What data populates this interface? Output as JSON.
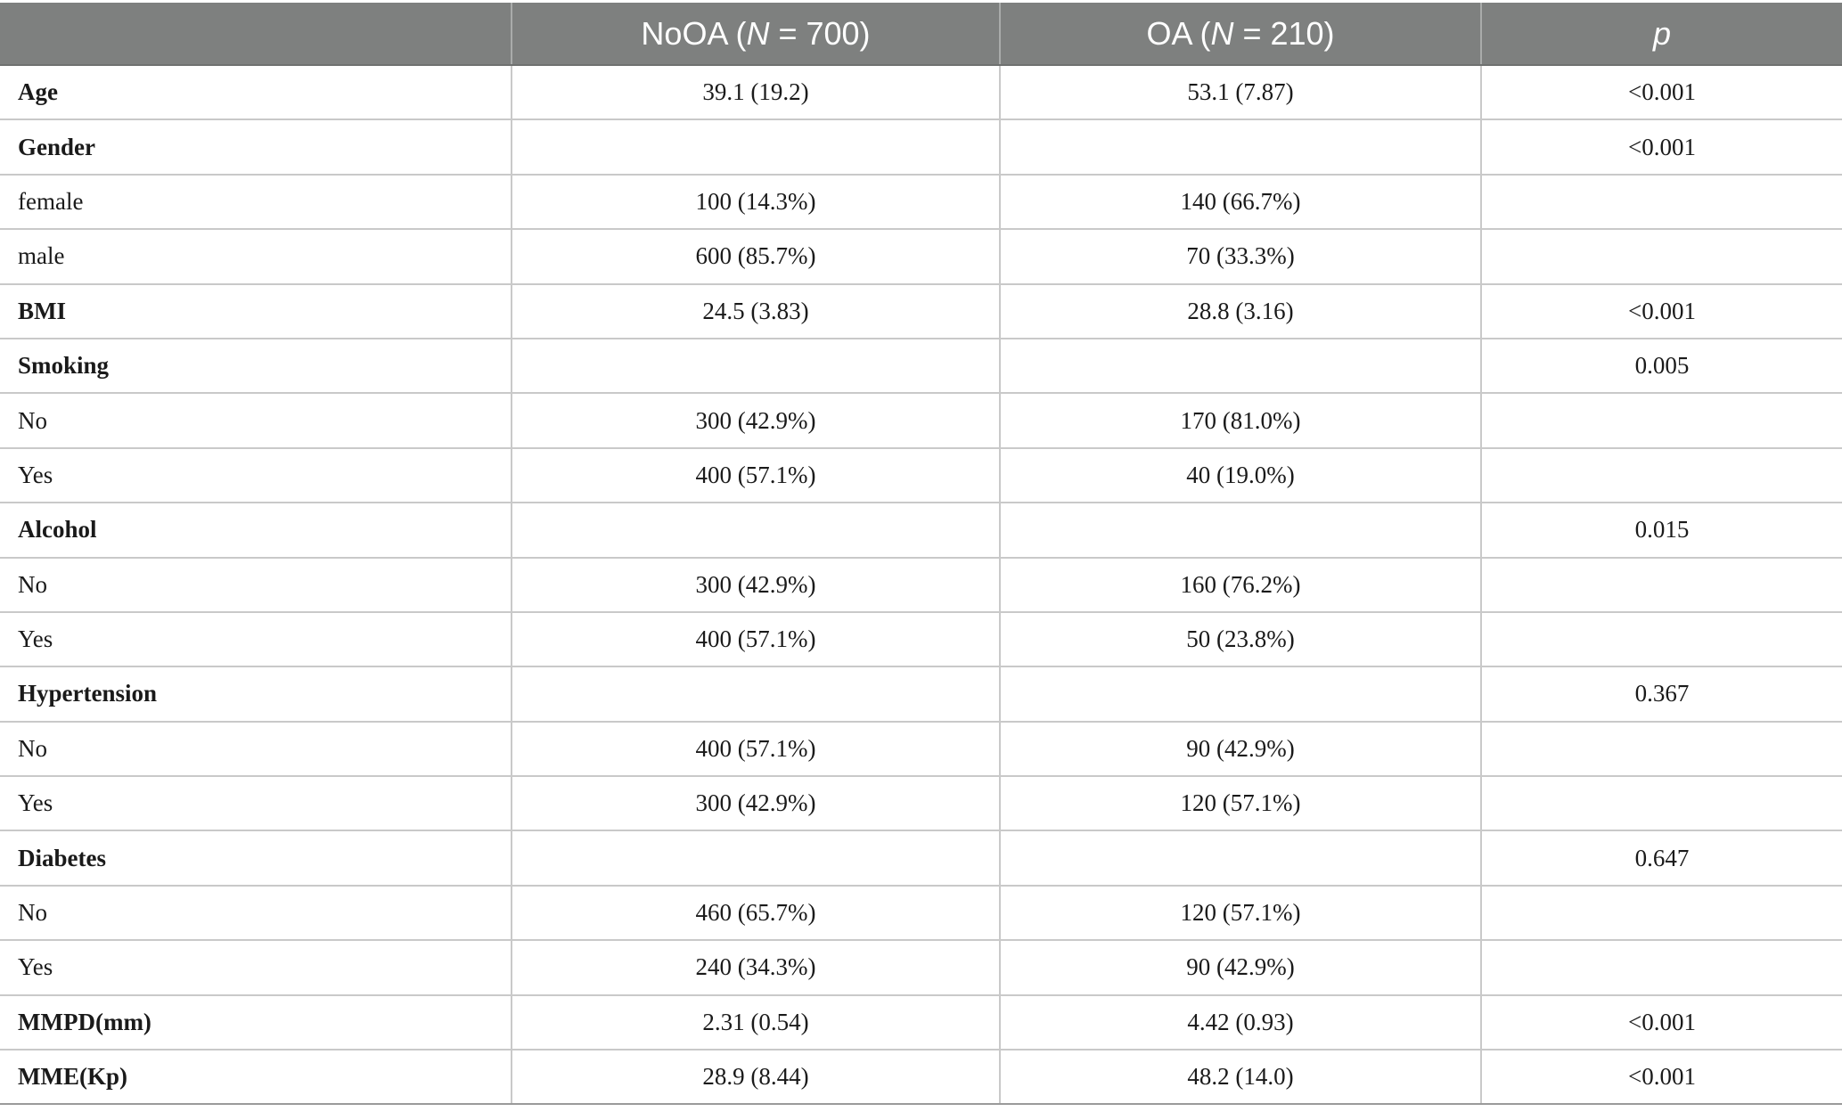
{
  "header": {
    "col1": {
      "prefix": "NoOA (",
      "italic": "N",
      "suffix": " = 700)"
    },
    "col2": {
      "prefix": "OA (",
      "italic": "N",
      "suffix": " = 210)"
    },
    "col3": {
      "italic": "p"
    }
  },
  "rows": [
    {
      "label": "Age",
      "bold": true,
      "noa": "39.1 (19.2)",
      "oa": "53.1 (7.87)",
      "p": "<0.001"
    },
    {
      "label": "Gender",
      "bold": true,
      "noa": "",
      "oa": "",
      "p": "<0.001"
    },
    {
      "label": "female",
      "bold": false,
      "noa": "100 (14.3%)",
      "oa": "140 (66.7%)",
      "p": ""
    },
    {
      "label": "male",
      "bold": false,
      "noa": "600 (85.7%)",
      "oa": "70 (33.3%)",
      "p": ""
    },
    {
      "label": "BMI",
      "bold": true,
      "noa": "24.5 (3.83)",
      "oa": "28.8 (3.16)",
      "p": "<0.001"
    },
    {
      "label": "Smoking",
      "bold": true,
      "noa": "",
      "oa": "",
      "p": "0.005"
    },
    {
      "label": "No",
      "bold": false,
      "noa": "300 (42.9%)",
      "oa": "170 (81.0%)",
      "p": ""
    },
    {
      "label": "Yes",
      "bold": false,
      "noa": "400 (57.1%)",
      "oa": "40 (19.0%)",
      "p": ""
    },
    {
      "label": "Alcohol",
      "bold": true,
      "noa": "",
      "oa": "",
      "p": "0.015"
    },
    {
      "label": "No",
      "bold": false,
      "noa": "300 (42.9%)",
      "oa": "160 (76.2%)",
      "p": ""
    },
    {
      "label": "Yes",
      "bold": false,
      "noa": "400 (57.1%)",
      "oa": "50 (23.8%)",
      "p": ""
    },
    {
      "label": "Hypertension",
      "bold": true,
      "noa": "",
      "oa": "",
      "p": "0.367"
    },
    {
      "label": "No",
      "bold": false,
      "noa": "400 (57.1%)",
      "oa": "90 (42.9%)",
      "p": ""
    },
    {
      "label": "Yes",
      "bold": false,
      "noa": "300 (42.9%)",
      "oa": "120 (57.1%)",
      "p": ""
    },
    {
      "label": "Diabetes",
      "bold": true,
      "noa": "",
      "oa": "",
      "p": "0.647"
    },
    {
      "label": "No",
      "bold": false,
      "noa": "460 (65.7%)",
      "oa": "120 (57.1%)",
      "p": ""
    },
    {
      "label": "Yes",
      "bold": false,
      "noa": "240 (34.3%)",
      "oa": "90 (42.9%)",
      "p": ""
    },
    {
      "label": "MMPD(mm)",
      "bold": true,
      "noa": "2.31 (0.54)",
      "oa": "4.42 (0.93)",
      "p": "<0.001"
    },
    {
      "label": "MME(Kp)",
      "bold": true,
      "noa": "28.9 (8.44)",
      "oa": "48.2 (14.0)",
      "p": "<0.001"
    }
  ]
}
